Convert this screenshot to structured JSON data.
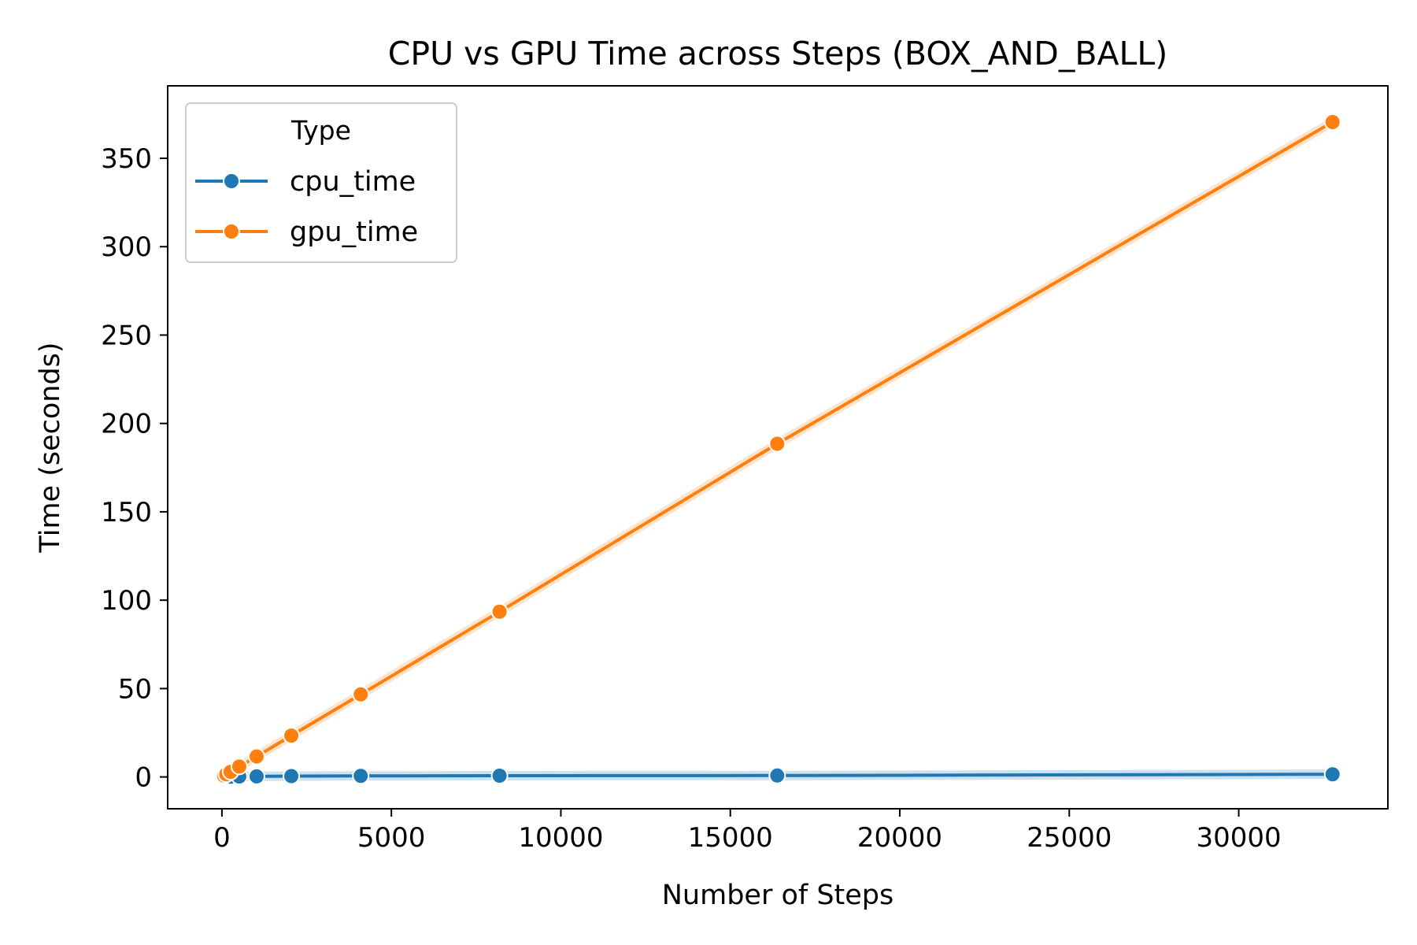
{
  "chart_data": {
    "type": "line",
    "title": "CPU vs GPU Time across Steps (BOX_AND_BALL)",
    "xlabel": "Number of Steps",
    "ylabel": "Time (seconds)",
    "xlim": [
      -1600,
      34400
    ],
    "ylim": [
      -18,
      391
    ],
    "xticks": [
      0,
      5000,
      10000,
      15000,
      20000,
      25000,
      30000
    ],
    "yticks": [
      0,
      50,
      100,
      150,
      200,
      250,
      300,
      350
    ],
    "grid": false,
    "legend": {
      "title": "Type",
      "placement": "top-left",
      "entries": [
        "cpu_time",
        "gpu_time"
      ]
    },
    "x": [
      64,
      128,
      256,
      512,
      1024,
      2048,
      4096,
      8192,
      16384,
      32768
    ],
    "series": [
      {
        "name": "cpu_time",
        "color": "#1f77b4",
        "values": [
          0.1,
          0.1,
          0.15,
          0.25,
          0.3,
          0.5,
          0.6,
          0.7,
          0.8,
          1.5
        ]
      },
      {
        "name": "gpu_time",
        "color": "#ff7f0e",
        "values": [
          0.7,
          1.5,
          2.9,
          5.9,
          11.6,
          23.4,
          46.7,
          93.5,
          188.5,
          370.5
        ]
      }
    ]
  }
}
